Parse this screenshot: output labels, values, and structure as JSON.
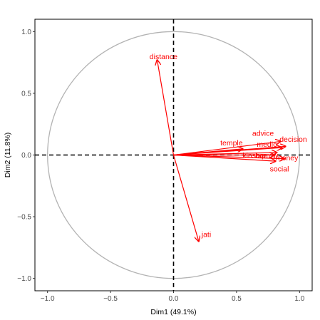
{
  "chart_data": {
    "type": "scatter",
    "subtype": "pca-variables-factor-map",
    "title": "",
    "xlabel": "Dim1 (49.1%)",
    "ylabel": "Dim2 (11.8%)",
    "xlim": [
      -1.1,
      1.1
    ],
    "ylim": [
      -1.1,
      1.1
    ],
    "x_ticks": [
      -1.0,
      -0.5,
      0.0,
      0.5,
      1.0
    ],
    "y_ticks": [
      -1.0,
      -0.5,
      0.0,
      0.5,
      1.0
    ],
    "x_tick_labels": [
      "−1.0",
      "−0.5",
      "0.0",
      "0.5",
      "1.0"
    ],
    "y_tick_labels": [
      "−1.0",
      "−0.5",
      "0.0",
      "0.5",
      "1.0"
    ],
    "grid": false,
    "correlation_circle": true,
    "reference_lines": [
      0,
      0
    ],
    "colors": {
      "arrow": "#ff0000",
      "circle": "#b3b3b3",
      "axis_line": "#000000",
      "tick_text": "#4d4d4d"
    },
    "variables": [
      {
        "name": "distance",
        "x": -0.13,
        "y": 0.77,
        "label_x": -0.08,
        "label_y": 0.8
      },
      {
        "name": "jati",
        "x": 0.2,
        "y": -0.7,
        "label_x": 0.26,
        "label_y": -0.64
      },
      {
        "name": "advice",
        "x": 0.85,
        "y": 0.11,
        "label_x": 0.71,
        "label_y": 0.18
      },
      {
        "name": "decision",
        "x": 0.89,
        "y": 0.07,
        "label_x": 0.95,
        "label_y": 0.13
      },
      {
        "name": "temple",
        "x": 0.55,
        "y": 0.05,
        "label_x": 0.46,
        "label_y": 0.1
      },
      {
        "name": "medic",
        "x": 0.86,
        "y": 0.06,
        "label_x": 0.74,
        "label_y": 0.09
      },
      {
        "name": "kinship",
        "x": 0.82,
        "y": 0.02,
        "label_x": 0.64,
        "label_y": 0.0
      },
      {
        "name": "borrow",
        "x": 0.8,
        "y": 0.0,
        "label_x": 0.74,
        "label_y": 0.0
      },
      {
        "name": "money",
        "x": 0.88,
        "y": -0.03,
        "label_x": 0.9,
        "label_y": -0.02
      },
      {
        "name": "social",
        "x": 0.81,
        "y": -0.05,
        "label_x": 0.84,
        "label_y": -0.11
      }
    ]
  }
}
